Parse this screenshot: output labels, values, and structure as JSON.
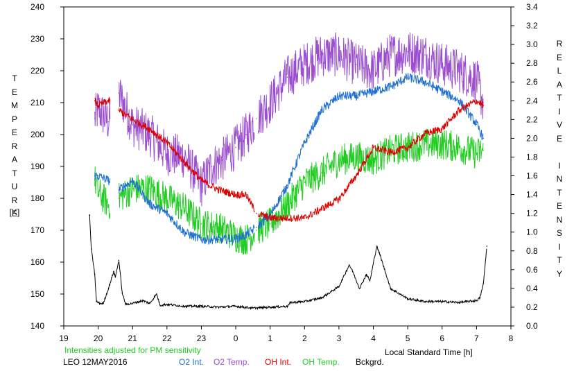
{
  "left_axis_title": "TEMPERATURE",
  "left_axis_unit": "[K]",
  "right_axis_title": "RELATIVE INTENSITY",
  "note": "Intensities adjusted for PM sensitivity",
  "station": "LEO 12MAY2016",
  "xlabel": "Local Standard Time [h]",
  "colors": {
    "o2_int": "#1f6fd0",
    "o2_temp": "#9b4fd0",
    "oh_int": "#dd0000",
    "oh_temp": "#22cc22",
    "bckgrd": "#000000"
  },
  "legend": [
    {
      "key": "o2_int",
      "label": "O2 Int."
    },
    {
      "key": "o2_temp",
      "label": "O2 Temp."
    },
    {
      "key": "oh_int",
      "label": "OH Int."
    },
    {
      "key": "oh_temp",
      "label": "OH Temp."
    },
    {
      "key": "bckgrd",
      "label": "Bckgrd."
    }
  ],
  "chart_data": {
    "type": "line",
    "x_ticks": [
      "19",
      "20",
      "21",
      "22",
      "23",
      "0",
      "1",
      "2",
      "3",
      "4",
      "5",
      "6",
      "7",
      "8"
    ],
    "y_left": {
      "lim": [
        140,
        240
      ],
      "ticks": [
        140,
        150,
        160,
        170,
        180,
        190,
        200,
        210,
        220,
        230,
        240
      ]
    },
    "y_right": {
      "lim": [
        0.0,
        3.4
      ],
      "ticks": [
        "0.0",
        "0.2",
        "0.4",
        "0.6",
        "0.8",
        "1.0",
        "1.2",
        "1.4",
        "1.6",
        "1.8",
        "2.0",
        "2.2",
        "2.4",
        "2.6",
        "2.8",
        "3.0",
        "3.2",
        "3.4"
      ]
    },
    "series": [
      {
        "key": "o2_temp",
        "name": "O2 Temp.",
        "axis": "left",
        "x": [
          19.9,
          20.0,
          20.3,
          20.6,
          21.0,
          21.5,
          22.0,
          22.5,
          23.0,
          23.3,
          23.6,
          24.0,
          24.3,
          24.6,
          25.0,
          25.5,
          26.0,
          26.5,
          27.0,
          27.5,
          28.0,
          28.5,
          29.0,
          29.5,
          30.0,
          30.5,
          31.0,
          31.2
        ],
        "y": [
          205,
          208,
          204,
          213,
          203,
          200,
          194,
          193,
          184,
          190,
          192,
          196,
          200,
          205,
          210,
          218,
          222,
          225,
          225,
          222,
          220,
          225,
          226,
          225,
          222,
          220,
          217,
          210
        ],
        "gaps": [
          [
            20.35,
            20.6
          ],
          [
            24.55,
            24.65
          ]
        ]
      },
      {
        "key": "oh_temp",
        "name": "OH Temp.",
        "axis": "left",
        "x": [
          19.9,
          20.0,
          20.3,
          20.6,
          21.0,
          21.5,
          22.0,
          22.5,
          23.0,
          23.5,
          24.0,
          24.3,
          24.6,
          25.0,
          25.5,
          26.0,
          26.5,
          27.0,
          27.5,
          28.0,
          28.5,
          29.0,
          29.5,
          30.0,
          30.5,
          31.0,
          31.2
        ],
        "y": [
          186,
          182,
          178,
          180,
          183,
          183,
          180,
          177,
          172,
          171,
          168,
          167,
          170,
          172,
          178,
          185,
          188,
          192,
          193,
          192,
          195,
          196,
          197,
          197,
          196,
          194,
          195
        ],
        "gaps": [
          [
            20.35,
            20.6
          ],
          [
            24.55,
            24.65
          ]
        ]
      },
      {
        "key": "o2_int",
        "name": "O2 Int.",
        "axis": "right",
        "x": [
          19.9,
          20.0,
          20.3,
          20.6,
          21.0,
          21.5,
          22.0,
          22.5,
          23.0,
          23.5,
          24.0,
          24.3,
          24.6,
          25.0,
          25.5,
          26.0,
          26.5,
          27.0,
          27.5,
          28.0,
          28.5,
          29.0,
          29.5,
          30.0,
          30.5,
          31.0,
          31.2
        ],
        "y": [
          1.6,
          1.6,
          1.55,
          1.45,
          1.55,
          1.3,
          1.2,
          1.0,
          0.92,
          0.92,
          0.93,
          0.97,
          1.05,
          1.18,
          1.5,
          1.95,
          2.3,
          2.45,
          2.45,
          2.5,
          2.55,
          2.65,
          2.6,
          2.5,
          2.4,
          2.15,
          2.0
        ],
        "gaps": [
          [
            20.35,
            20.6
          ],
          [
            24.55,
            24.65
          ]
        ]
      },
      {
        "key": "oh_int",
        "name": "OH Int.",
        "axis": "right",
        "x": [
          19.9,
          20.0,
          20.3,
          20.6,
          21.0,
          21.5,
          22.0,
          22.5,
          23.0,
          23.5,
          24.0,
          24.3,
          24.6,
          25.0,
          25.5,
          26.0,
          26.5,
          27.0,
          27.5,
          28.0,
          28.5,
          29.0,
          29.5,
          30.0,
          30.5,
          31.0,
          31.2
        ],
        "y": [
          2.4,
          2.35,
          2.4,
          2.3,
          2.2,
          2.1,
          1.95,
          1.75,
          1.55,
          1.45,
          1.4,
          1.4,
          1.2,
          1.15,
          1.15,
          1.15,
          1.25,
          1.35,
          1.6,
          1.9,
          1.85,
          1.9,
          2.05,
          2.1,
          2.3,
          2.4,
          2.35
        ],
        "gaps": [
          [
            20.35,
            20.6
          ],
          [
            24.55,
            24.65
          ]
        ]
      },
      {
        "key": "bckgrd",
        "name": "Bckgrd.",
        "axis": "right",
        "x": [
          19.75,
          19.8,
          19.9,
          19.95,
          20.05,
          20.15,
          20.3,
          20.45,
          20.5,
          20.6,
          20.7,
          20.8,
          21.0,
          21.3,
          21.5,
          21.7,
          21.8,
          22.0,
          22.5,
          23.0,
          23.5,
          24.0,
          24.5,
          25.0,
          25.5,
          25.6,
          26.0,
          26.5,
          27.0,
          27.3,
          27.4,
          27.6,
          27.8,
          27.9,
          28.1,
          28.2,
          28.5,
          29.0,
          29.5,
          30.0,
          30.5,
          31.0,
          31.1,
          31.2,
          31.3
        ],
        "y": [
          1.18,
          0.82,
          0.55,
          0.26,
          0.24,
          0.24,
          0.4,
          0.58,
          0.52,
          0.7,
          0.35,
          0.23,
          0.24,
          0.27,
          0.24,
          0.34,
          0.22,
          0.23,
          0.21,
          0.21,
          0.2,
          0.21,
          0.19,
          0.2,
          0.21,
          0.25,
          0.26,
          0.3,
          0.42,
          0.65,
          0.58,
          0.4,
          0.55,
          0.48,
          0.85,
          0.75,
          0.4,
          0.29,
          0.26,
          0.26,
          0.25,
          0.27,
          0.3,
          0.45,
          0.85
        ]
      }
    ]
  }
}
